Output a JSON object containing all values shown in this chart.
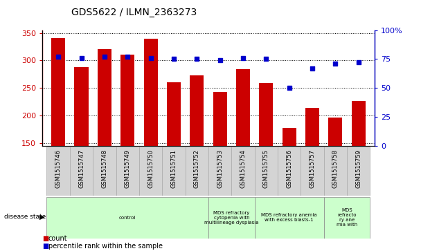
{
  "title": "GDS5622 / ILMN_2363273",
  "samples": [
    "GSM1515746",
    "GSM1515747",
    "GSM1515748",
    "GSM1515749",
    "GSM1515750",
    "GSM1515751",
    "GSM1515752",
    "GSM1515753",
    "GSM1515754",
    "GSM1515755",
    "GSM1515756",
    "GSM1515757",
    "GSM1515758",
    "GSM1515759"
  ],
  "counts": [
    341,
    288,
    321,
    311,
    339,
    260,
    273,
    242,
    284,
    259,
    177,
    213,
    196,
    226
  ],
  "percentiles": [
    77,
    76,
    77,
    77,
    76,
    75,
    75,
    74,
    76,
    75,
    50,
    67,
    71,
    72
  ],
  "ylim_left": [
    145,
    355
  ],
  "ylim_right": [
    0,
    100
  ],
  "yticks_left": [
    150,
    200,
    250,
    300,
    350
  ],
  "yticks_right": [
    0,
    25,
    50,
    75,
    100
  ],
  "bar_color": "#cc0000",
  "dot_color": "#0000cc",
  "sample_box_color": "#d4d4d4",
  "sample_box_edge": "#aaaaaa",
  "disease_groups": [
    {
      "label": "control",
      "start": 0,
      "end": 7,
      "bg": "#ccffcc"
    },
    {
      "label": "MDS refractory\ncytopenia with\nmultilineage dysplasia",
      "start": 7,
      "end": 9,
      "bg": "#ccffcc"
    },
    {
      "label": "MDS refractory anemia\nwith excess blasts-1",
      "start": 9,
      "end": 12,
      "bg": "#ccffcc"
    },
    {
      "label": "MDS\nrefracto\nry ane\nmia with",
      "start": 12,
      "end": 14,
      "bg": "#ccffcc"
    }
  ]
}
